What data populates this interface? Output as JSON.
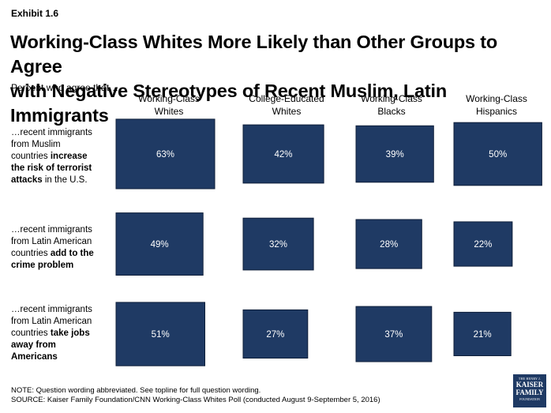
{
  "exhibit": "Exhibit 1.6",
  "title_line1": "Working-Class Whites More Likely than Other Groups to Agree",
  "title_line2": "with Negative Stereotypes of Recent Muslim, Latin Immigrants",
  "subtitle": "Percent who agree that…",
  "columns": [
    {
      "line1": "Working-Class",
      "line2": "Whites"
    },
    {
      "line1": "College-Educated",
      "line2": "Whites"
    },
    {
      "line1": "Working-Class",
      "line2": "Blacks"
    },
    {
      "line1": "Working-Class",
      "line2": "Hispanics"
    }
  ],
  "rows": [
    {
      "lines": [
        [
          "…recent immigrants",
          ""
        ],
        [
          "from Muslim",
          ""
        ],
        [
          "countries ",
          "increase"
        ],
        [
          "",
          "the risk of terrorist"
        ],
        [
          "attacks",
          " in the U.S."
        ]
      ]
    },
    {
      "lines": [
        [
          "…recent immigrants",
          ""
        ],
        [
          "from Latin American",
          ""
        ],
        [
          "countries ",
          "add to the"
        ],
        [
          "",
          "crime problem"
        ]
      ]
    },
    {
      "lines": [
        [
          "…recent immigrants",
          ""
        ],
        [
          "from Latin American",
          ""
        ],
        [
          "countries ",
          "take jobs"
        ],
        [
          "",
          "away from"
        ],
        [
          "",
          "Americans"
        ]
      ]
    }
  ],
  "notes": {
    "note": "NOTE: Question wording abbreviated. See topline for full question wording.",
    "source": "SOURCE: Kaiser Family Foundation/CNN Working-Class Whites Poll (conducted August 9-September 5, 2016)"
  },
  "logo": {
    "line1": "THE HENRY J.",
    "line2a": "KAISER",
    "line2b": "FAMILY",
    "line3": "FOUNDATION"
  },
  "colors": {
    "box_fill": "#1f3a64",
    "box_stroke": "#0f1f3a",
    "label_text": "#ffffff"
  },
  "chart_data": {
    "type": "table",
    "title": "Working-Class Whites More Likely than Other Groups to Agree with Negative Stereotypes of Recent Muslim, Latin Immigrants",
    "subtitle": "Percent who agree that…",
    "columns": [
      "Working-Class Whites",
      "College-Educated Whites",
      "Working-Class Blacks",
      "Working-Class Hispanics"
    ],
    "rows": [
      "…recent immigrants from Muslim countries increase the risk of terrorist attacks in the U.S.",
      "…recent immigrants from Latin American countries add to the crime problem",
      "…recent immigrants from Latin American countries take jobs away from Americans"
    ],
    "values": [
      [
        63,
        42,
        39,
        50
      ],
      [
        49,
        32,
        28,
        22
      ],
      [
        51,
        27,
        37,
        21
      ]
    ],
    "unit": "%"
  }
}
